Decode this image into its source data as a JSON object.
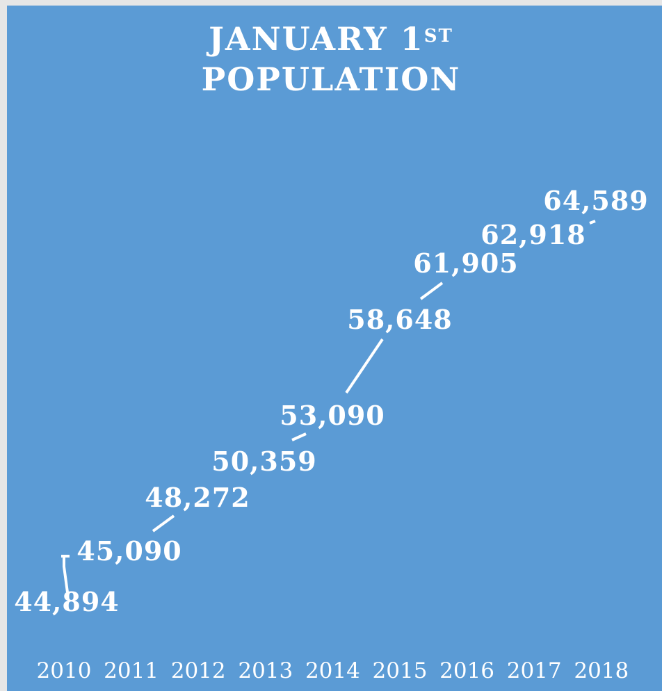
{
  "chart_data": {
    "type": "bar",
    "title_line1": "JANUARY 1",
    "title_sup": "ST",
    "title_line2": "POPULATION",
    "categories": [
      "2010",
      "2011",
      "2012",
      "2013",
      "2014",
      "2015",
      "2016",
      "2017",
      "2018"
    ],
    "values": [
      44894,
      45090,
      48272,
      50359,
      53090,
      58648,
      61905,
      62918,
      64589
    ],
    "data_labels": [
      "44,894",
      "45,090",
      "48,272",
      "50,359",
      "53,090",
      "58,648",
      "61,905",
      "62,918",
      "64,589"
    ],
    "xlabel": "",
    "ylabel": "",
    "ylim": [
      44000,
      65000
    ],
    "grid": false,
    "legend": "none",
    "style": "drop lines with leader-line data labels",
    "colors": {
      "background": "#5b9bd5",
      "frame": "#e6e6e6",
      "text": "#ffffff",
      "line": "#ffffff"
    }
  }
}
